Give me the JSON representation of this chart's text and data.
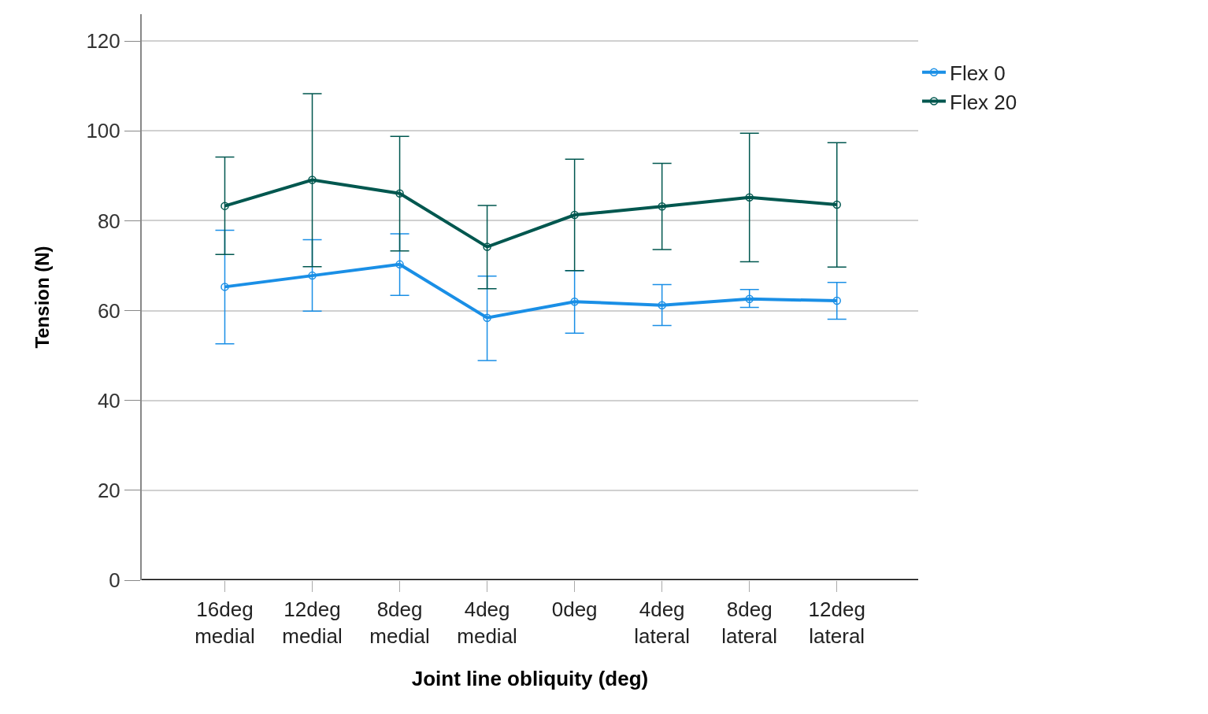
{
  "chart_data": {
    "type": "line",
    "xlabel": "Joint line obliquity (deg)",
    "ylabel": "Tension (N)",
    "categories": [
      "16deg\nmedial",
      "12deg\nmedial",
      "8deg\nmedial",
      "4deg\nmedial",
      "0deg",
      "4deg\nlateral",
      "8deg\nlateral",
      "12deg\nlateral"
    ],
    "series": [
      {
        "name": "Flex 0",
        "color": "#1a8fe6",
        "values": [
          65.3,
          67.8,
          70.3,
          58.4,
          62.0,
          61.2,
          62.6,
          62.2
        ],
        "errors": [
          [
            52.6,
            77.9
          ],
          [
            59.9,
            75.8
          ],
          [
            63.4,
            77.1
          ],
          [
            48.9,
            67.7
          ],
          [
            55.0,
            68.9
          ],
          [
            56.7,
            65.8
          ],
          [
            60.7,
            64.7
          ],
          [
            58.1,
            66.3
          ]
        ]
      },
      {
        "name": "Flex 20",
        "color": "#00574f",
        "values": [
          83.3,
          89.1,
          86.1,
          74.2,
          81.3,
          83.2,
          85.2,
          83.6
        ],
        "errors": [
          [
            72.5,
            94.2
          ],
          [
            69.8,
            108.3
          ],
          [
            73.3,
            98.8
          ],
          [
            64.9,
            83.4
          ],
          [
            68.9,
            93.7
          ],
          [
            73.6,
            92.8
          ],
          [
            70.9,
            99.5
          ],
          [
            69.7,
            97.4
          ]
        ]
      }
    ],
    "ylim": [
      0,
      126
    ],
    "yticks": [
      0,
      20,
      40,
      60,
      80,
      100,
      120
    ],
    "grid": "y",
    "legend": "top right",
    "marker": "circle",
    "line_style": "solid"
  }
}
